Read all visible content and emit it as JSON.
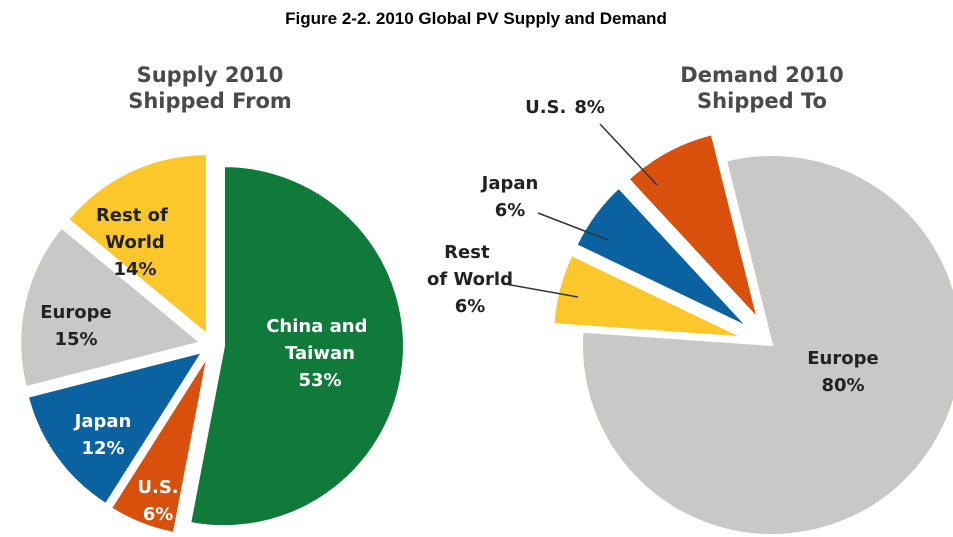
{
  "title": "Figure 2-2. 2010 Global PV Supply and Demand",
  "chart_data": [
    {
      "type": "pie",
      "title": "Supply 2010",
      "subtitle": "Shipped From",
      "categories": [
        "China and Taiwan",
        "U.S.",
        "Japan",
        "Europe",
        "Rest of World"
      ],
      "values": [
        53,
        6,
        12,
        15,
        14
      ],
      "value_labels": [
        "53%",
        "6%",
        "12%",
        "15%",
        "14%"
      ],
      "colors": [
        "#0f7a3a",
        "#d9500c",
        "#0b62a1",
        "#c8c9c7",
        "#fcc72b"
      ]
    },
    {
      "type": "pie",
      "title": "Demand 2010",
      "subtitle": "Shipped To",
      "categories": [
        "Europe",
        "Rest of World",
        "Japan",
        "U.S."
      ],
      "values": [
        80,
        6,
        6,
        8
      ],
      "value_labels": [
        "80%",
        "6%",
        "6%",
        "8%"
      ],
      "colors": [
        "#c8c9c7",
        "#fcc72b",
        "#0b62a1",
        "#d9500c"
      ]
    }
  ]
}
